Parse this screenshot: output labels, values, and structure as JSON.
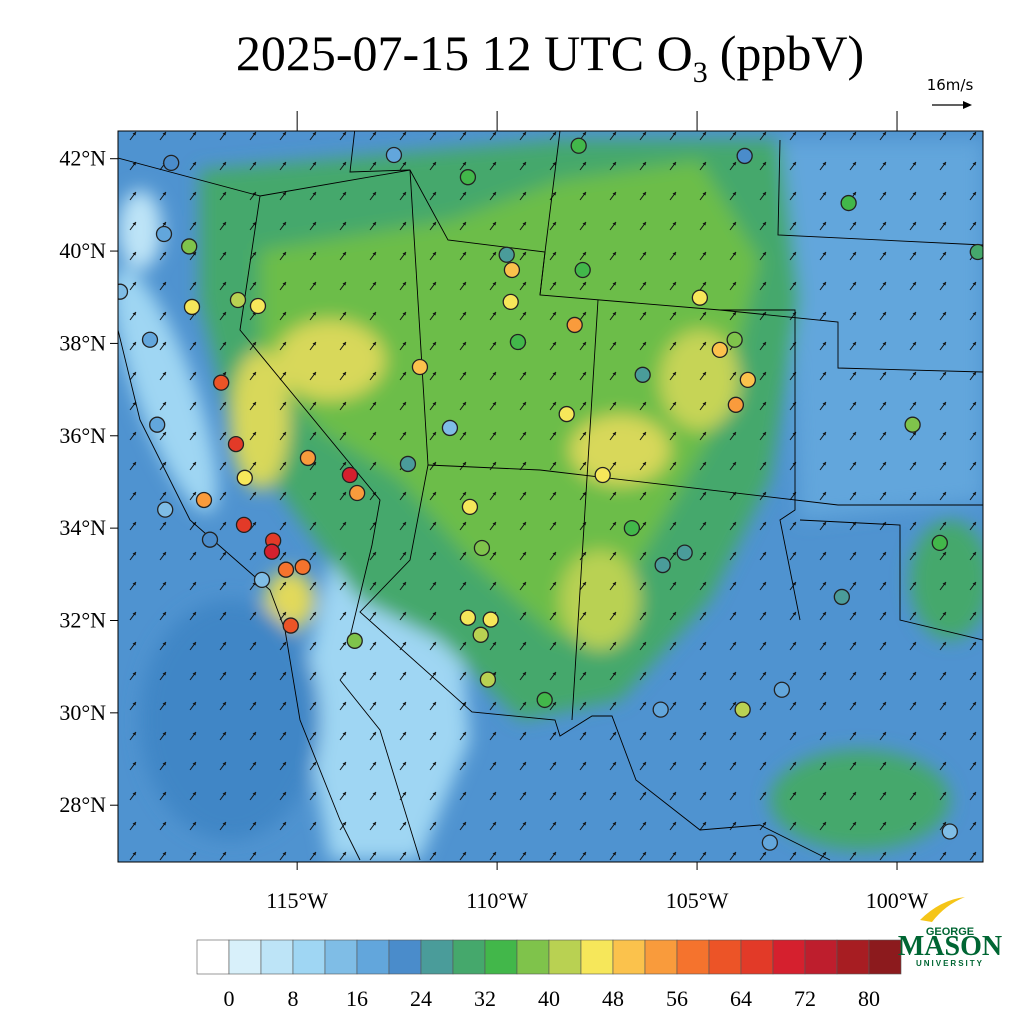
{
  "title": "2025-07-15 12 UTC O",
  "title_subscript": "3",
  "title_suffix": "(ppbV)",
  "wind_reference": "16m/s",
  "map": {
    "lon_range": [
      -119.48,
      -97.85
    ],
    "lat_range": [
      26.77,
      42.6
    ],
    "lat_ticks": [
      {
        "value": 42,
        "label": "42°N"
      },
      {
        "value": 40,
        "label": "40°N"
      },
      {
        "value": 38,
        "label": "38°N"
      },
      {
        "value": 36,
        "label": "36°N"
      },
      {
        "value": 34,
        "label": "34°N"
      },
      {
        "value": 32,
        "label": "32°N"
      },
      {
        "value": 30,
        "label": "30°N"
      },
      {
        "value": 28,
        "label": "28°N"
      }
    ],
    "lon_ticks": [
      {
        "value": -115,
        "label": "115°W"
      },
      {
        "value": -110,
        "label": "110°W"
      },
      {
        "value": -105,
        "label": "105°W"
      },
      {
        "value": -100,
        "label": "100°W"
      }
    ]
  },
  "colorbar": {
    "colors": [
      "#ffffff",
      "#d8f0fa",
      "#bde4f7",
      "#9fd6f3",
      "#7fbde6",
      "#62a6dc",
      "#4a8ccb",
      "#4a9c9a",
      "#45a86c",
      "#42b74a",
      "#7fc34b",
      "#b9d152",
      "#f6e75a",
      "#fbc24c",
      "#f99b3c",
      "#f5732d",
      "#ec5427",
      "#e23a28",
      "#d5202e",
      "#be1e2d",
      "#a71d22",
      "#8c1a1d"
    ],
    "ticks": [
      0,
      8,
      16,
      24,
      32,
      40,
      48,
      56,
      64,
      72,
      80
    ]
  },
  "stations": [
    {
      "lon": -118.15,
      "lat": 41.91,
      "value": 22
    },
    {
      "lon": -118.33,
      "lat": 40.37,
      "value": 18
    },
    {
      "lon": -117.7,
      "lat": 40.1,
      "value": 36
    },
    {
      "lon": -117.63,
      "lat": 38.79,
      "value": 46
    },
    {
      "lon": -116.48,
      "lat": 38.94,
      "value": 42
    },
    {
      "lon": -115.98,
      "lat": 38.81,
      "value": 46
    },
    {
      "lon": -116.9,
      "lat": 37.15,
      "value": 62
    },
    {
      "lon": -116.53,
      "lat": 35.82,
      "value": 64
    },
    {
      "lon": -116.31,
      "lat": 35.09,
      "value": 46
    },
    {
      "lon": -117.33,
      "lat": 34.61,
      "value": 53
    },
    {
      "lon": -116.33,
      "lat": 34.07,
      "value": 64
    },
    {
      "lon": -115.6,
      "lat": 33.73,
      "value": 66
    },
    {
      "lon": -115.63,
      "lat": 33.49,
      "value": 70
    },
    {
      "lon": -115.28,
      "lat": 33.1,
      "value": 56
    },
    {
      "lon": -114.86,
      "lat": 33.16,
      "value": 56
    },
    {
      "lon": -115.16,
      "lat": 31.89,
      "value": 62
    },
    {
      "lon": -113.56,
      "lat": 31.56,
      "value": 36
    },
    {
      "lon": -114.73,
      "lat": 35.52,
      "value": 52
    },
    {
      "lon": -113.68,
      "lat": 35.15,
      "value": 70
    },
    {
      "lon": -113.5,
      "lat": 34.76,
      "value": 54
    },
    {
      "lon": -111.93,
      "lat": 37.49,
      "value": 50
    },
    {
      "lon": -112.23,
      "lat": 35.39,
      "value": 24
    },
    {
      "lon": -111.18,
      "lat": 36.17,
      "value": 14
    },
    {
      "lon": -110.68,
      "lat": 34.46,
      "value": 46
    },
    {
      "lon": -110.38,
      "lat": 33.57,
      "value": 36
    },
    {
      "lon": -110.73,
      "lat": 32.06,
      "value": 47
    },
    {
      "lon": -110.16,
      "lat": 32.02,
      "value": 47
    },
    {
      "lon": -110.41,
      "lat": 31.69,
      "value": 40
    },
    {
      "lon": -110.23,
      "lat": 30.72,
      "value": 43
    },
    {
      "lon": -109.63,
      "lat": 39.59,
      "value": 50
    },
    {
      "lon": -109.66,
      "lat": 38.9,
      "value": 47
    },
    {
      "lon": -109.76,
      "lat": 39.92,
      "value": 24
    },
    {
      "lon": -109.48,
      "lat": 38.03,
      "value": 34
    },
    {
      "lon": -108.06,
      "lat": 38.4,
      "value": 52
    },
    {
      "lon": -108.26,
      "lat": 36.47,
      "value": 47
    },
    {
      "lon": -107.36,
      "lat": 35.15,
      "value": 46
    },
    {
      "lon": -106.63,
      "lat": 34.0,
      "value": 33
    },
    {
      "lon": -105.86,
      "lat": 33.2,
      "value": 24
    },
    {
      "lon": -105.31,
      "lat": 33.47,
      "value": 24
    },
    {
      "lon": -104.43,
      "lat": 37.86,
      "value": 50
    },
    {
      "lon": -104.03,
      "lat": 36.67,
      "value": 52
    },
    {
      "lon": -103.73,
      "lat": 37.21,
      "value": 48
    },
    {
      "lon": -104.06,
      "lat": 38.08,
      "value": 36
    },
    {
      "lon": -104.93,
      "lat": 38.99,
      "value": 46
    },
    {
      "lon": -103.81,
      "lat": 42.06,
      "value": 22
    },
    {
      "lon": -101.21,
      "lat": 41.04,
      "value": 34
    },
    {
      "lon": -99.61,
      "lat": 36.24,
      "value": 36
    },
    {
      "lon": -98.93,
      "lat": 33.68,
      "value": 32
    },
    {
      "lon": -101.38,
      "lat": 32.51,
      "value": 24
    },
    {
      "lon": -105.91,
      "lat": 30.07,
      "value": 16
    },
    {
      "lon": -103.86,
      "lat": 30.07,
      "value": 43
    },
    {
      "lon": -103.18,
      "lat": 27.19,
      "value": 16
    },
    {
      "lon": -98.68,
      "lat": 27.43,
      "value": 14
    },
    {
      "lon": -119.43,
      "lat": 39.12,
      "value": 14
    },
    {
      "lon": -118.68,
      "lat": 38.08,
      "value": 16
    },
    {
      "lon": -118.5,
      "lat": 36.24,
      "value": 18
    },
    {
      "lon": -118.3,
      "lat": 34.4,
      "value": 12
    },
    {
      "lon": -117.18,
      "lat": 33.75,
      "value": 22
    },
    {
      "lon": -115.88,
      "lat": 32.88,
      "value": 14
    },
    {
      "lon": -107.86,
      "lat": 39.59,
      "value": 34
    },
    {
      "lon": -107.96,
      "lat": 42.28,
      "value": 34
    },
    {
      "lon": -110.73,
      "lat": 41.6,
      "value": 34
    },
    {
      "lon": -112.58,
      "lat": 42.08,
      "value": 18
    },
    {
      "lon": -106.36,
      "lat": 37.32,
      "value": 26
    },
    {
      "lon": -108.81,
      "lat": 30.28,
      "value": 34
    },
    {
      "lon": -97.98,
      "lat": 39.98,
      "value": 30
    },
    {
      "lon": -102.88,
      "lat": 30.5,
      "value": 18
    }
  ],
  "logo": {
    "top": "GEORGE",
    "name": "MASON",
    "bottom": "UNIVERSITY"
  }
}
